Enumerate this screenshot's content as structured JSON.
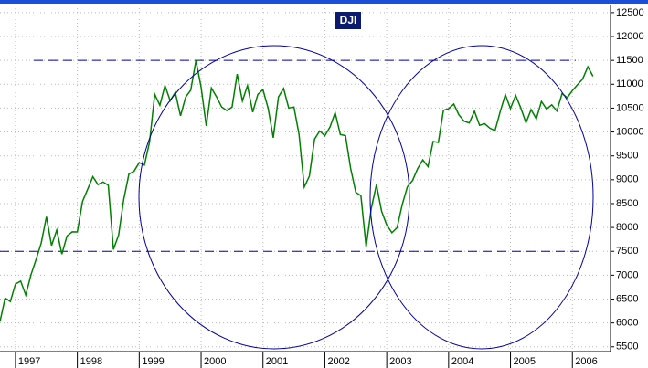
{
  "chart_data": {
    "type": "line",
    "title": "DJI",
    "categories": [
      null,
      null,
      null,
      "1997",
      null,
      null,
      null,
      null,
      null,
      null,
      null,
      null,
      null,
      null,
      null,
      "1998",
      null,
      null,
      null,
      null,
      null,
      null,
      null,
      null,
      null,
      null,
      null,
      "1999",
      null,
      null,
      null,
      null,
      null,
      null,
      null,
      null,
      null,
      null,
      null,
      "2000",
      null,
      null,
      null,
      null,
      null,
      null,
      null,
      null,
      null,
      null,
      null,
      "2001",
      null,
      null,
      null,
      null,
      null,
      null,
      null,
      null,
      null,
      null,
      null,
      "2002",
      null,
      null,
      null,
      null,
      null,
      null,
      null,
      null,
      null,
      null,
      null,
      "2003",
      null,
      null,
      null,
      null,
      null,
      null,
      null,
      null,
      null,
      null,
      null,
      "2004",
      null,
      null,
      null,
      null,
      null,
      null,
      null,
      null,
      null,
      null,
      null,
      "2005",
      null,
      null,
      null,
      null,
      null,
      null,
      null,
      null,
      null,
      null,
      null,
      "2006",
      null,
      null,
      null,
      null
    ],
    "series": [
      {
        "name": "DJI",
        "color": "#008000",
        "values": [
          6029,
          6522,
          6448,
          6813,
          6877,
          6584,
          7009,
          7331,
          7673,
          8223,
          7622,
          7945,
          7442,
          7823,
          7908,
          7907,
          8546,
          8800,
          9063,
          8900,
          8952,
          8883,
          7539,
          7843,
          8592,
          9117,
          9181,
          9359,
          9307,
          9786,
          10789,
          10560,
          10971,
          10655,
          10829,
          10337,
          10730,
          10878,
          11497,
          10941,
          10128,
          10922,
          10734,
          10522,
          10448,
          10522,
          11215,
          10651,
          10971,
          10415,
          10787,
          10887,
          10495,
          9879,
          10735,
          10912,
          10502,
          10523,
          9950,
          8848,
          9075,
          9852,
          10021,
          9920,
          10106,
          10404,
          9946,
          9925,
          9243,
          8737,
          8664,
          7592,
          8397,
          8896,
          8342,
          8054,
          7891,
          7992,
          8480,
          8850,
          8985,
          9234,
          9416,
          9275,
          9801,
          9782,
          10454,
          10488,
          10584,
          10358,
          10226,
          10188,
          10435,
          10140,
          10174,
          10080,
          10027,
          10428,
          10783,
          10490,
          10766,
          10504,
          10193,
          10467,
          10275,
          10641,
          10482,
          10569,
          10440,
          10806,
          10718,
          10865,
          10993,
          11109,
          11367,
          11168
        ]
      }
    ],
    "ylim": [
      5400,
      12670
    ],
    "yticks": [
      5500,
      6000,
      6500,
      7000,
      7500,
      8000,
      8500,
      9000,
      9500,
      10000,
      10500,
      11000,
      11500,
      12000,
      12500
    ],
    "hlines": [
      11500,
      7500
    ],
    "grid": true
  }
}
